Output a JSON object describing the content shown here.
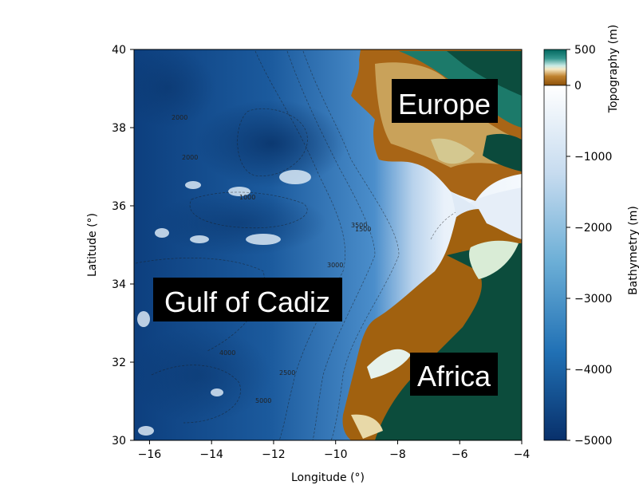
{
  "map": {
    "xlabel": "Longitude (°)",
    "ylabel": "Latitude (°)",
    "xlim": [
      -16.5,
      -4
    ],
    "ylim": [
      30,
      40
    ],
    "x_ticks": [
      -16,
      -14,
      -12,
      -10,
      -8,
      -6,
      -4
    ],
    "y_ticks": [
      30,
      32,
      34,
      36,
      38,
      40
    ],
    "x_tick_labels": [
      "−16",
      "−14",
      "−12",
      "−10",
      "−8",
      "−6",
      "−4"
    ],
    "y_tick_labels": [
      "30",
      "32",
      "34",
      "36",
      "38",
      "40"
    ],
    "region_labels": [
      {
        "text": "Europe"
      },
      {
        "text": "Gulf of Cadiz"
      },
      {
        "text": "Africa"
      }
    ],
    "contour_labels": [
      "1000",
      "1500",
      "2000",
      "3000",
      "4000",
      "5000",
      "3500",
      "2500"
    ],
    "colors": {
      "deep_ocean": "#0c3f7d",
      "mid_ocean": "#3a83c2",
      "shallow_ocean": "#e9f1fa",
      "lowland": "#9c5b14",
      "highland": "#d8c77e",
      "forest": "#0d4b3a"
    }
  },
  "colorbar_topo": {
    "label": "Topography (m)",
    "ticks": [
      500,
      0
    ],
    "tick_labels": [
      "500",
      "0"
    ],
    "range": [
      0,
      500
    ]
  },
  "colorbar_bathy": {
    "label": "Bathymetry (m)",
    "ticks": [
      0,
      -1000,
      -2000,
      -3000,
      -4000,
      -5000
    ],
    "tick_labels": [
      "0",
      "−1000",
      "−2000",
      "−3000",
      "−4000",
      "−5000"
    ],
    "range": [
      -5000,
      0
    ]
  }
}
